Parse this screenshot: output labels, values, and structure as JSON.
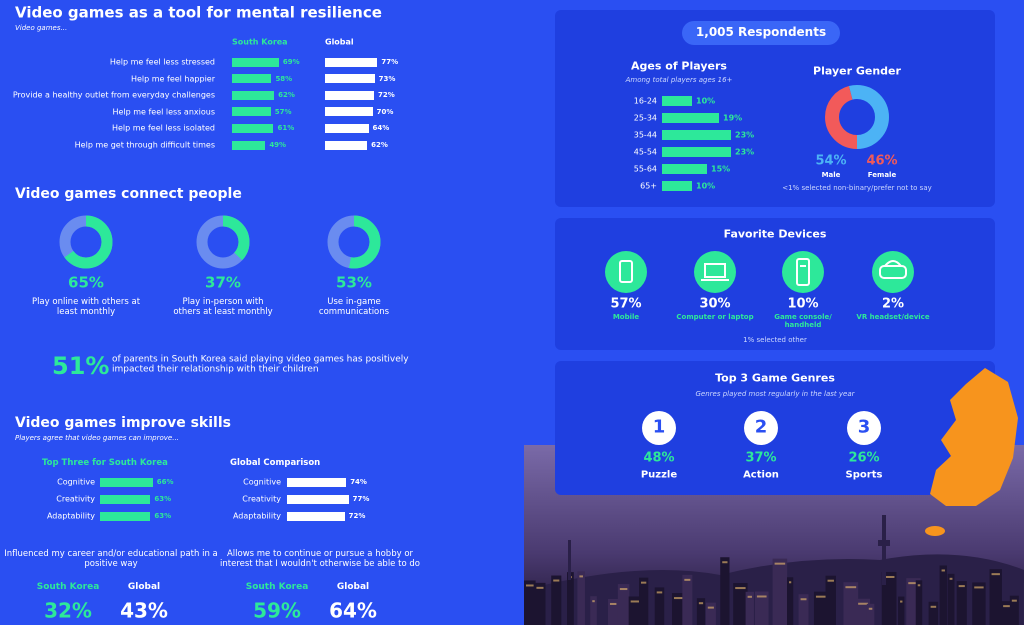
{
  "resilience": {
    "title": "Video games as a tool for mental resilience",
    "subtitle": "Video games...",
    "categories": [
      "Help me feel less stressed",
      "Help me feel happier",
      "Provide a healthy outlet from everyday challenges",
      "Help me feel less anxious",
      "Help me feel less isolated",
      "Help me get through difficult times"
    ],
    "series": [
      {
        "name": "South Korea",
        "color": "#2de89a",
        "values": [
          69,
          58,
          62,
          57,
          61,
          49
        ],
        "value_labels": [
          "69%",
          "58%",
          "62%",
          "57%",
          "61%",
          "49%"
        ]
      },
      {
        "name": "Global",
        "color": "#ffffff",
        "values": [
          77,
          73,
          72,
          70,
          64,
          62
        ],
        "value_labels": [
          "77%",
          "73%",
          "72%",
          "70%",
          "64%",
          "62%"
        ]
      }
    ]
  },
  "connect": {
    "title": "Video games connect people",
    "donuts": [
      {
        "value": 65,
        "label": "65%",
        "caption": "Play online with others at least monthly"
      },
      {
        "value": 37,
        "label": "37%",
        "caption": "Play in-person with others at least monthly"
      },
      {
        "value": 53,
        "label": "53%",
        "caption": "Use in-game communications"
      }
    ],
    "parents": {
      "value": 51,
      "label": "51%",
      "text": "of parents in South Korea said playing video games has positively impacted their relationship with their children"
    }
  },
  "skills": {
    "title": "Video games improve skills",
    "subtitle": "Players agree that video games can improve...",
    "groups": [
      {
        "title": "Top Three for South Korea",
        "color": "#2de89a",
        "categories": [
          "Cognitive",
          "Creativity",
          "Adaptability"
        ],
        "values": [
          66,
          63,
          63
        ],
        "value_labels": [
          "66%",
          "63%",
          "63%"
        ]
      },
      {
        "title": "Global Comparison",
        "color": "#ffffff",
        "categories": [
          "Cognitive",
          "Creativity",
          "Adaptability"
        ],
        "values": [
          74,
          77,
          72
        ],
        "value_labels": [
          "74%",
          "77%",
          "72%"
        ]
      }
    ],
    "stats": [
      {
        "caption": "Influenced my career and/or educational path in a positive way",
        "korea_name": "South Korea",
        "korea": "32%",
        "global_name": "Global",
        "global": "43%"
      },
      {
        "caption": "Allows me to continue or pursue a hobby or interest that I wouldn't otherwise be able to do",
        "korea_name": "South Korea",
        "korea": "59%",
        "global_name": "Global",
        "global": "64%"
      }
    ]
  },
  "respondents": "1,005 Respondents",
  "ages": {
    "title": "Ages of Players",
    "subtitle": "Among total players ages 16+",
    "color": "#2de89a",
    "categories": [
      "16-24",
      "25-34",
      "35-44",
      "45-54",
      "55-64",
      "65+"
    ],
    "values": [
      10,
      19,
      23,
      23,
      15,
      10
    ],
    "value_labels": [
      "10%",
      "19%",
      "23%",
      "23%",
      "15%",
      "10%"
    ]
  },
  "gender": {
    "title": "Player Gender",
    "segments": [
      {
        "name": "Male",
        "value": 54,
        "label": "54%",
        "color": "#4cb3f5"
      },
      {
        "name": "Female",
        "value": 46,
        "label": "46%",
        "color": "#f25a5a"
      }
    ],
    "note": "<1% selected non-binary/prefer not to say"
  },
  "devices": {
    "title": "Favorite Devices",
    "items": [
      {
        "label": "57%",
        "name": "Mobile"
      },
      {
        "label": "30%",
        "name": "Computer or laptop"
      },
      {
        "label": "10%",
        "name": "Game console/ handheld"
      },
      {
        "label": "2%",
        "name": "VR headset/device"
      }
    ],
    "note": "1% selected other"
  },
  "genres": {
    "title": "Top 3 Game Genres",
    "subtitle": "Genres played most regularly in the last year",
    "items": [
      {
        "rank": "1",
        "label": "48%",
        "name": "Puzzle"
      },
      {
        "rank": "2",
        "label": "37%",
        "name": "Action"
      },
      {
        "rank": "3",
        "label": "26%",
        "name": "Sports"
      }
    ]
  }
}
